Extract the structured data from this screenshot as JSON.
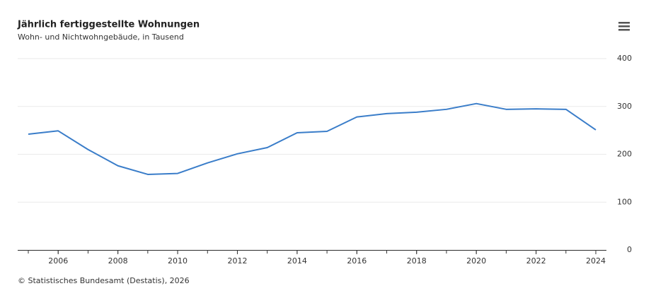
{
  "chart_data": {
    "type": "line",
    "title": "Jährlich fertiggestellte Wohnungen",
    "subtitle": "Wohn- und Nichtwohngebäude, in Tausend",
    "source": "© Statistisches Bundesamt (Destatis), 2026",
    "x": [
      2005,
      2006,
      2007,
      2008,
      2009,
      2010,
      2011,
      2012,
      2013,
      2014,
      2015,
      2016,
      2017,
      2018,
      2019,
      2020,
      2021,
      2022,
      2023,
      2024
    ],
    "series": [
      {
        "name": "Fertiggestellte Wohnungen",
        "color": "#3a7dc9",
        "values": [
          242,
          249,
          210,
          176,
          158,
          160,
          182,
          201,
          214,
          245,
          248,
          278,
          285,
          288,
          294,
          306,
          294,
          295,
          294,
          251
        ]
      }
    ],
    "xlim": [
      2005,
      2024
    ],
    "xticks": [
      2006,
      2008,
      2010,
      2012,
      2014,
      2016,
      2018,
      2020,
      2022,
      2024
    ],
    "ylim": [
      0,
      400
    ],
    "yticks": [
      0,
      100,
      200,
      300,
      400
    ],
    "grid": true,
    "legend": false
  }
}
